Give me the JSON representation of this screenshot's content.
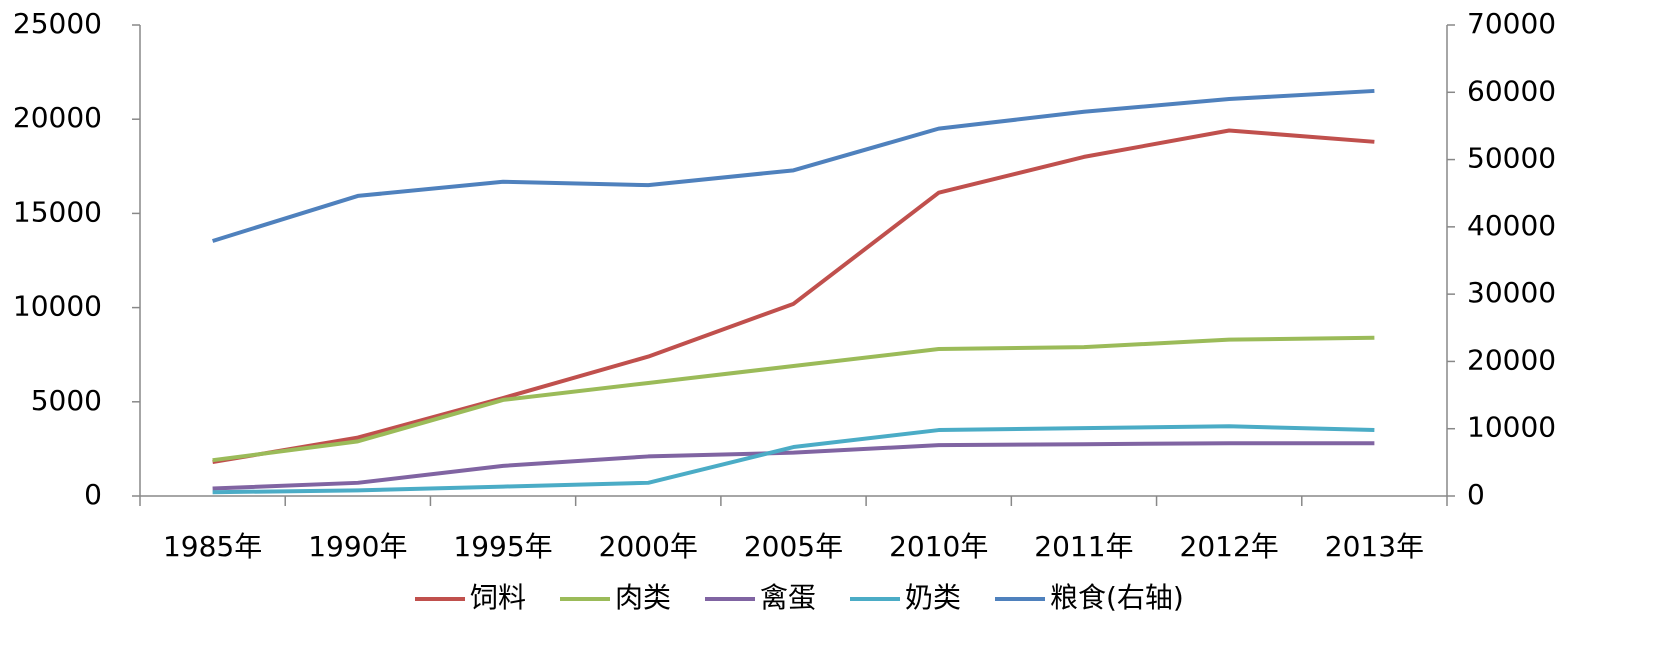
{
  "chart_data": {
    "type": "line",
    "categories": [
      "1985年",
      "1990年",
      "1995年",
      "2000年",
      "2005年",
      "2010年",
      "2011年",
      "2012年",
      "2013年"
    ],
    "series": [
      {
        "name": "饲料",
        "color": "#c0504d",
        "values": [
          1800,
          3100,
          5200,
          7400,
          10200,
          16100,
          18000,
          19400,
          18800
        ]
      },
      {
        "name": "肉类",
        "color": "#9bbb59",
        "values": [
          1900,
          2900,
          5100,
          6000,
          6900,
          7800,
          7900,
          8300,
          8400
        ]
      },
      {
        "name": "禽蛋",
        "color": "#8064a2",
        "values": [
          400,
          700,
          1600,
          2100,
          2300,
          2700,
          2750,
          2800,
          2800
        ]
      },
      {
        "name": "奶类",
        "color": "#4bacc6",
        "values": [
          200,
          300,
          500,
          700,
          2600,
          3500,
          3600,
          3700,
          3500
        ]
      },
      {
        "name": "粮食(右轴)",
        "color": "#4f81bd",
        "axis": "y2",
        "values": [
          37900,
          44600,
          46700,
          46200,
          48400,
          54600,
          57100,
          59000,
          60200
        ]
      }
    ],
    "ylim": [
      0,
      25000
    ],
    "yticks": [
      0,
      5000,
      10000,
      15000,
      20000,
      25000
    ],
    "y2lim": [
      0,
      70000
    ],
    "y2ticks": [
      0,
      10000,
      20000,
      30000,
      40000,
      50000,
      60000,
      70000
    ],
    "legend": "bottom"
  }
}
